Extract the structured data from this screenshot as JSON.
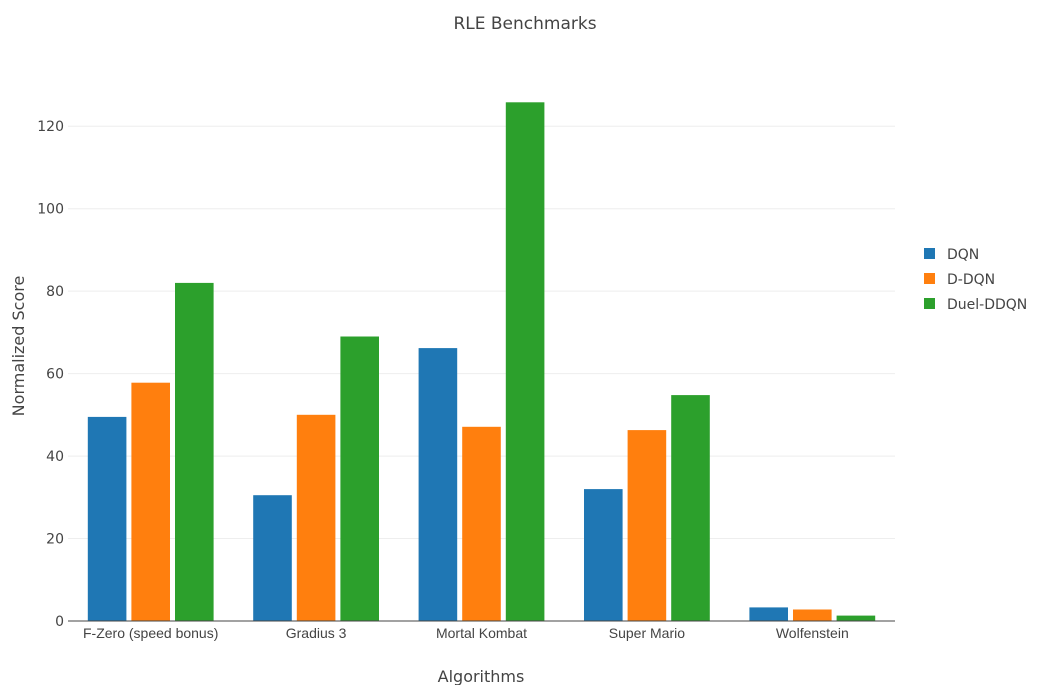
{
  "chart_data": {
    "type": "bar",
    "title": "RLE Benchmarks",
    "xlabel": "Algorithms",
    "ylabel": "Normalized Score",
    "categories": [
      "F-Zero (speed bonus)",
      "Gradius 3",
      "Mortal Kombat",
      "Super Mario",
      "Wolfenstein"
    ],
    "series": [
      {
        "name": "DQN",
        "color": "#1f77b4",
        "values": [
          49.5,
          30.5,
          66.2,
          32.0,
          3.3
        ]
      },
      {
        "name": "D-DQN",
        "color": "#ff7f0e",
        "values": [
          57.8,
          50.0,
          47.1,
          46.3,
          2.8
        ]
      },
      {
        "name": "Duel-DDQN",
        "color": "#2ca02c",
        "values": [
          82.0,
          69.0,
          125.8,
          54.8,
          1.3
        ]
      }
    ],
    "ylim": [
      0,
      130
    ],
    "yticks": [
      0,
      20,
      40,
      60,
      80,
      100,
      120
    ],
    "grid": true,
    "legend_position": "right"
  }
}
